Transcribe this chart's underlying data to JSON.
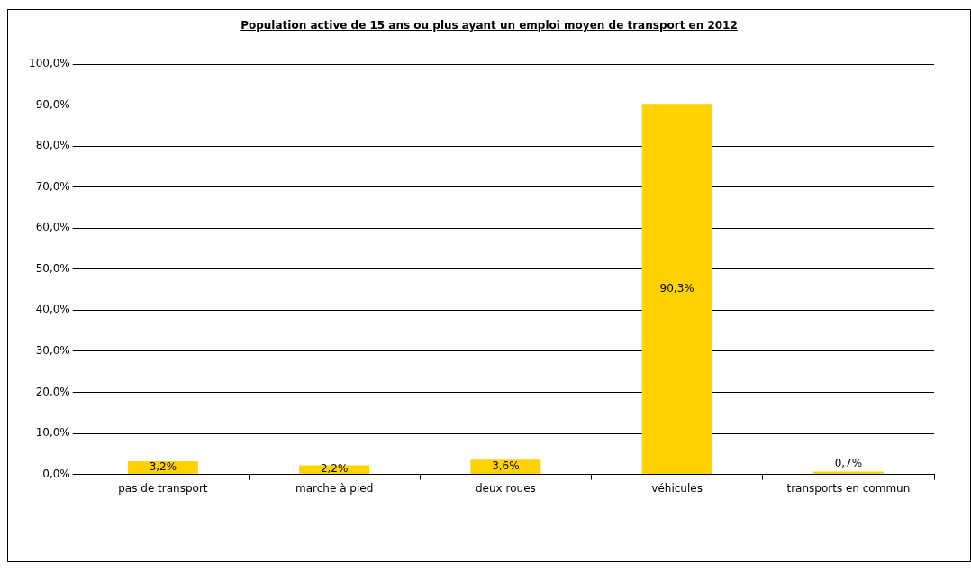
{
  "chart_data": {
    "type": "bar",
    "title": "Population active de 15 ans ou plus ayant un emploi moyen de transport en 2012",
    "categories": [
      "pas de transport",
      "marche à pied",
      "deux roues",
      "véhicules",
      "transports en commun"
    ],
    "values": [
      3.2,
      2.2,
      3.6,
      90.3,
      0.7
    ],
    "value_labels": [
      "3,2%",
      "2,2%",
      "3,6%",
      "90,3%",
      "0,7%"
    ],
    "color": "#ffd200",
    "ylim": [
      0,
      100
    ],
    "yticks": [
      {
        "value": 0,
        "label": "0,0%"
      },
      {
        "value": 10,
        "label": "10,0%"
      },
      {
        "value": 20,
        "label": "20,0%"
      },
      {
        "value": 30,
        "label": "30,0%"
      },
      {
        "value": 40,
        "label": "40,0%"
      },
      {
        "value": 50,
        "label": "50,0%"
      },
      {
        "value": 60,
        "label": "60,0%"
      },
      {
        "value": 70,
        "label": "70,0%"
      },
      {
        "value": 80,
        "label": "80,0%"
      },
      {
        "value": 90,
        "label": "90,0%"
      },
      {
        "value": 100,
        "label": "100,0%"
      }
    ],
    "grid": "y",
    "legend": false
  }
}
